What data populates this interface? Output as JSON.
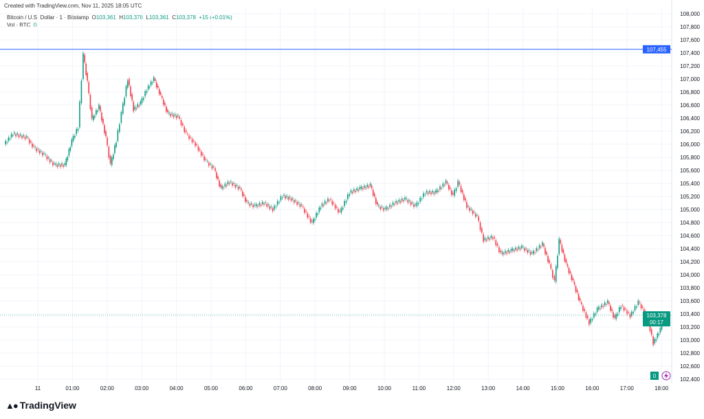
{
  "credit": "Created with TradingView.com, Nov 11, 2025 18:05 UTC",
  "legend": {
    "symbol": "Bitcoin / U.S. Dollar · 1 · Bitstamp",
    "o_label": "O",
    "o": "103,361",
    "h_label": "H",
    "h": "103,378",
    "l_label": "L",
    "l": "103,361",
    "c_label": "C",
    "c": "103,378",
    "change": "+15 (+0.01%)",
    "vol_label": "Vol · BTC",
    "vol": "0"
  },
  "logo": "TradingView",
  "colors": {
    "up": "#089981",
    "down": "#f23645",
    "hline": "#2962ff",
    "price_tag": "#089981"
  },
  "chart_data": {
    "type": "candlestick",
    "title": "",
    "xlabel": "",
    "ylabel": "",
    "ylim": [
      102400,
      108000
    ],
    "y_ticks": [
      "102,400",
      "102,600",
      "102,800",
      "103,000",
      "103,200",
      "103,400",
      "103,600",
      "103,800",
      "104,000",
      "104,200",
      "104,400",
      "104,600",
      "104,800",
      "105,000",
      "105,200",
      "105,400",
      "105,600",
      "105,800",
      "106,000",
      "106,200",
      "106,400",
      "106,600",
      "106,800",
      "107,000",
      "107,200",
      "107,400",
      "107,600",
      "107,800",
      "108,000"
    ],
    "x_ticks": [
      "11",
      "01:00",
      "02:00",
      "03:00",
      "04:00",
      "05:00",
      "06:00",
      "07:00",
      "08:00",
      "09:00",
      "10:00",
      "11:00",
      "12:00",
      "13:00",
      "14:00",
      "15:00",
      "16:00",
      "17:00",
      "18:00"
    ],
    "horizontal_line": {
      "value": 107455,
      "label": "107,455"
    },
    "last_price": {
      "value": 103378,
      "label": "103,378",
      "countdown": "00:17"
    },
    "volume_label": "0",
    "grid": true,
    "points": [
      [
        "23:03",
        106000
      ],
      [
        "23:18",
        106160
      ],
      [
        "23:42",
        106100
      ],
      [
        "23:54",
        105950
      ],
      [
        "00:12",
        105840
      ],
      [
        "00:30",
        105680
      ],
      [
        "00:48",
        105680
      ],
      [
        "01:00",
        106050
      ],
      [
        "01:11",
        106260
      ],
      [
        "01:20",
        107370
      ],
      [
        "01:27",
        106950
      ],
      [
        "01:35",
        106370
      ],
      [
        "01:47",
        106580
      ],
      [
        "01:59",
        106100
      ],
      [
        "02:07",
        105680
      ],
      [
        "02:17",
        106050
      ],
      [
        "02:26",
        106470
      ],
      [
        "02:37",
        107000
      ],
      [
        "02:47",
        106530
      ],
      [
        "02:59",
        106630
      ],
      [
        "03:10",
        106840
      ],
      [
        "03:22",
        107000
      ],
      [
        "03:34",
        106740
      ],
      [
        "03:46",
        106470
      ],
      [
        "04:04",
        106420
      ],
      [
        "04:18",
        106160
      ],
      [
        "04:34",
        106000
      ],
      [
        "04:52",
        105740
      ],
      [
        "05:06",
        105630
      ],
      [
        "05:18",
        105320
      ],
      [
        "05:33",
        105420
      ],
      [
        "05:51",
        105320
      ],
      [
        "06:03",
        105100
      ],
      [
        "06:17",
        105050
      ],
      [
        "06:33",
        105100
      ],
      [
        "06:48",
        105000
      ],
      [
        "07:05",
        105210
      ],
      [
        "07:20",
        105160
      ],
      [
        "07:38",
        105050
      ],
      [
        "07:56",
        104790
      ],
      [
        "08:11",
        105050
      ],
      [
        "08:26",
        105160
      ],
      [
        "08:44",
        104950
      ],
      [
        "09:01",
        105260
      ],
      [
        "09:19",
        105320
      ],
      [
        "09:37",
        105370
      ],
      [
        "09:49",
        105050
      ],
      [
        "10:03",
        105000
      ],
      [
        "10:19",
        105100
      ],
      [
        "10:37",
        105160
      ],
      [
        "10:55",
        105050
      ],
      [
        "11:12",
        105260
      ],
      [
        "11:30",
        105260
      ],
      [
        "11:48",
        105420
      ],
      [
        "12:00",
        105210
      ],
      [
        "12:09",
        105420
      ],
      [
        "12:24",
        105050
      ],
      [
        "12:42",
        104890
      ],
      [
        "12:53",
        104530
      ],
      [
        "13:09",
        104580
      ],
      [
        "13:23",
        104320
      ],
      [
        "13:41",
        104370
      ],
      [
        "13:59",
        104420
      ],
      [
        "14:17",
        104320
      ],
      [
        "14:35",
        104470
      ],
      [
        "14:47",
        104160
      ],
      [
        "14:56",
        103890
      ],
      [
        "15:04",
        104530
      ],
      [
        "15:16",
        104160
      ],
      [
        "15:28",
        103890
      ],
      [
        "15:40",
        103580
      ],
      [
        "15:56",
        103260
      ],
      [
        "16:10",
        103470
      ],
      [
        "16:28",
        103580
      ],
      [
        "16:40",
        103320
      ],
      [
        "16:51",
        103530
      ],
      [
        "17:07",
        103370
      ],
      [
        "17:21",
        103580
      ],
      [
        "17:36",
        103370
      ],
      [
        "17:47",
        102950
      ],
      [
        "17:59",
        103160
      ],
      [
        "18:05",
        103378
      ]
    ]
  }
}
